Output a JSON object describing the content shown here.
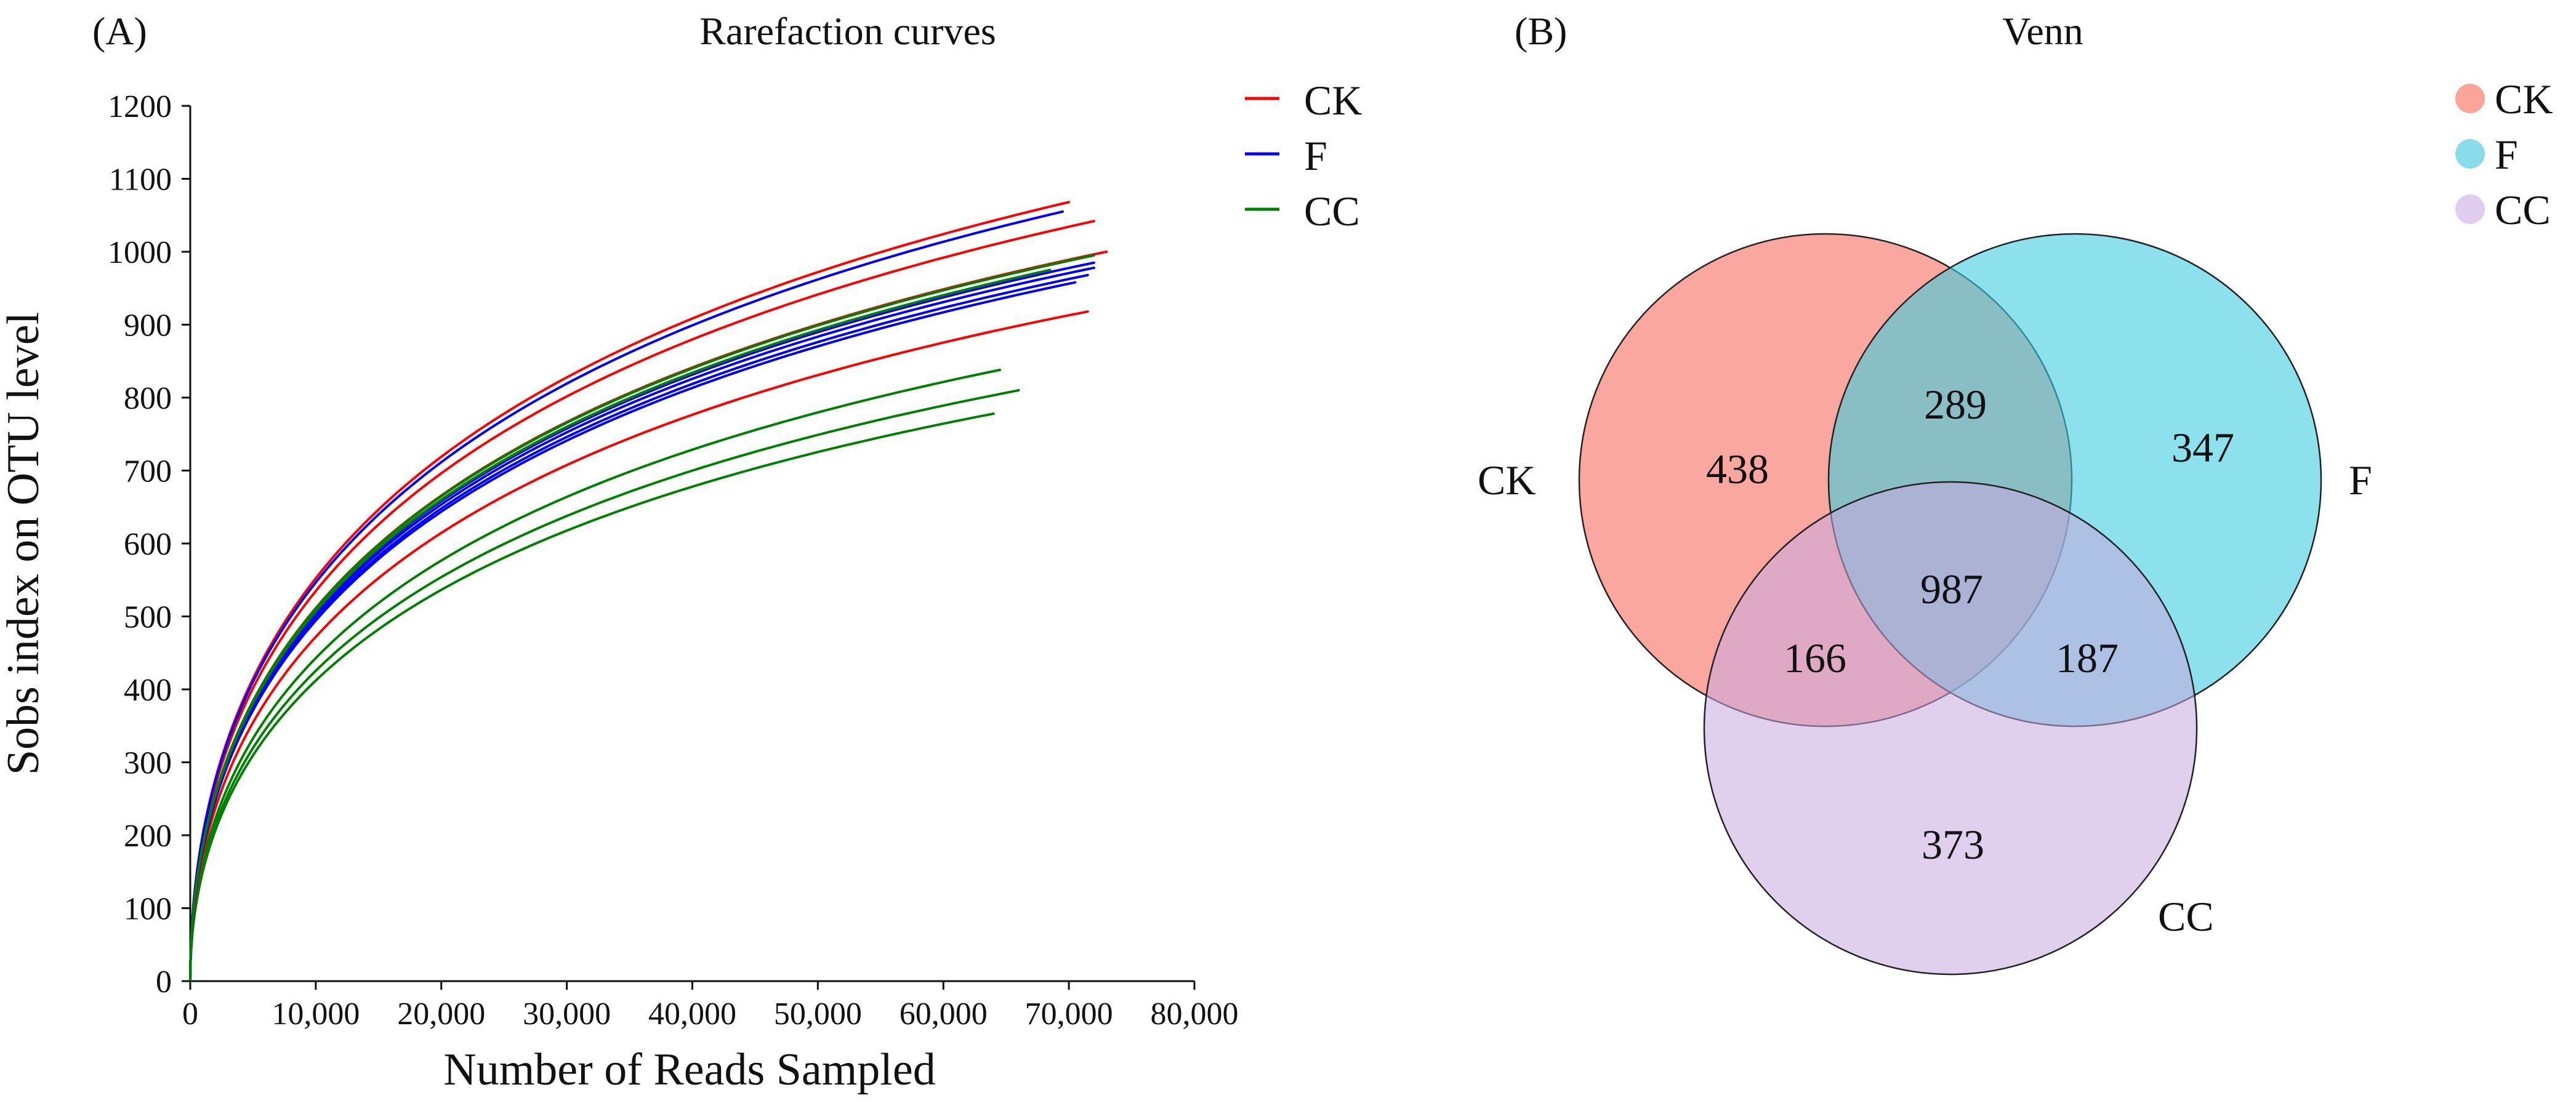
{
  "chart_data": [
    {
      "type": "line",
      "panel": "(A)",
      "title": "Rarefaction curves",
      "xlabel": "Number of Reads Sampled",
      "ylabel": "Sobs index on OTU level",
      "xlim": [
        0,
        80000
      ],
      "ylim": [
        0,
        1200
      ],
      "xticks": [
        0,
        10000,
        20000,
        30000,
        40000,
        50000,
        60000,
        70000,
        80000
      ],
      "xtick_labels": [
        "0",
        "10,000",
        "20,000",
        "30,000",
        "40,000",
        "50,000",
        "60,000",
        "70,000",
        "80,000"
      ],
      "yticks": [
        0,
        100,
        200,
        300,
        400,
        500,
        600,
        700,
        800,
        900,
        1000,
        1100,
        1200
      ],
      "ytick_labels": [
        "0",
        "100",
        "200",
        "300",
        "400",
        "500",
        "600",
        "700",
        "800",
        "900",
        "1000",
        "1100",
        "1200"
      ],
      "grid": false,
      "legend_position": "top-right",
      "legend": [
        {
          "label": "CK",
          "color": "#ff0000"
        },
        {
          "label": "F",
          "color": "#0000ff"
        },
        {
          "label": "CC",
          "color": "#008000"
        }
      ],
      "series": [
        {
          "name": "CK",
          "color": "#ff0000",
          "x_end": 70000,
          "y_end": 1068
        },
        {
          "name": "CK",
          "color": "#ff0000",
          "x_end": 72000,
          "y_end": 1042
        },
        {
          "name": "CK",
          "color": "#ff0000",
          "x_end": 73000,
          "y_end": 1000
        },
        {
          "name": "CK",
          "color": "#ff0000",
          "x_end": 71500,
          "y_end": 918
        },
        {
          "name": "CK",
          "color": "#ff0000",
          "x_end": 68500,
          "y_end": 972
        },
        {
          "name": "F",
          "color": "#0000ff",
          "x_end": 69500,
          "y_end": 1055
        },
        {
          "name": "F",
          "color": "#0000ff",
          "x_end": 72000,
          "y_end": 978
        },
        {
          "name": "F",
          "color": "#0000ff",
          "x_end": 71500,
          "y_end": 968
        },
        {
          "name": "F",
          "color": "#0000ff",
          "x_end": 70500,
          "y_end": 958
        },
        {
          "name": "F",
          "color": "#0000ff",
          "x_end": 72000,
          "y_end": 985
        },
        {
          "name": "CC",
          "color": "#008000",
          "x_end": 64500,
          "y_end": 838
        },
        {
          "name": "CC",
          "color": "#008000",
          "x_end": 66000,
          "y_end": 810
        },
        {
          "name": "CC",
          "color": "#008000",
          "x_end": 64000,
          "y_end": 778
        },
        {
          "name": "CC",
          "color": "#008000",
          "x_end": 72000,
          "y_end": 995
        },
        {
          "name": "CC",
          "color": "#008000",
          "x_end": 68500,
          "y_end": 975
        }
      ]
    },
    {
      "type": "venn",
      "panel": "(B)",
      "title": "Venn",
      "legend_position": "top-right",
      "sets": [
        {
          "name": "CK",
          "color": "#f8877a",
          "legend_color": "#fba49a"
        },
        {
          "name": "F",
          "color": "#3fcde0",
          "legend_color": "#8bdcea"
        },
        {
          "name": "CC",
          "color": "#c8a8e0",
          "legend_color": "#e0cdef"
        }
      ],
      "regions": {
        "CK_only": 438,
        "F_only": 347,
        "CC_only": 373,
        "CK_F": 289,
        "CK_CC": 166,
        "F_CC": 187,
        "CK_F_CC": 987
      }
    }
  ]
}
